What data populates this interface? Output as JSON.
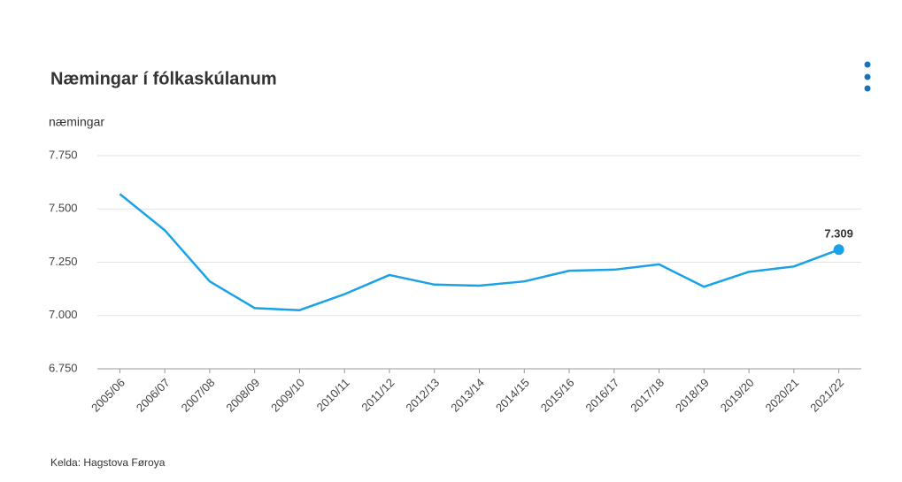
{
  "chart_data": {
    "type": "line",
    "title": "Næmingar í fólkaskúlanum",
    "y_label": "næmingar",
    "source": "Kelda: Hagstova Føroya",
    "categories": [
      "2005/06",
      "2006/07",
      "2007/08",
      "2008/09",
      "2009/10",
      "2010/11",
      "2011/12",
      "2012/13",
      "2013/14",
      "2014/15",
      "2015/16",
      "2016/17",
      "2017/18",
      "2018/19",
      "2019/20",
      "2020/21",
      "2021/22"
    ],
    "values": [
      7570,
      7400,
      7160,
      7035,
      7025,
      7100,
      7190,
      7145,
      7140,
      7160,
      7210,
      7215,
      7240,
      7135,
      7205,
      7230,
      7309
    ],
    "value_labels": [
      null,
      null,
      null,
      null,
      null,
      null,
      null,
      null,
      null,
      null,
      null,
      null,
      null,
      null,
      null,
      null,
      "7.309"
    ],
    "color": "#1aa1e6",
    "ylim": [
      6750,
      7750
    ],
    "yticks": [
      {
        "value": 6750,
        "label": "6.750"
      },
      {
        "value": 7000,
        "label": "7.000"
      },
      {
        "value": 7250,
        "label": "7.250"
      },
      {
        "value": 7500,
        "label": "7.500"
      },
      {
        "value": 7750,
        "label": "7.750"
      }
    ],
    "grid": true
  }
}
